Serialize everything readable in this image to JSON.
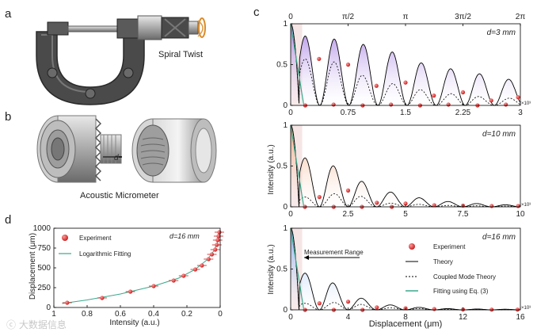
{
  "panels": {
    "a": {
      "letter": "a",
      "caption": "Spiral Twist"
    },
    "b": {
      "letter": "b",
      "caption": "Acoustic Micrometer",
      "gap_label": "d"
    },
    "c": {
      "letter": "c",
      "top_ticks": [
        "0",
        "π/2",
        "π",
        "3π/2",
        "2π"
      ],
      "ylabel": "Intensity (a.u.)",
      "xlabel": "Displacement (μm)",
      "exp_label": "×10³",
      "measurement_range": "Measurement Range",
      "legend": [
        "Experiment",
        "Theory",
        "Coupled Mode Theory",
        "Fitting using Eq. (3)"
      ]
    },
    "d": {
      "letter": "d",
      "title": "d=16 mm",
      "ylabel": "Displacement (μm)",
      "xlabel": "Intensity (a.u.)",
      "legend": [
        "Experiment",
        "Logarithmic Fitting"
      ]
    }
  },
  "chart_data": [
    {
      "type": "line",
      "title": "d=3 mm",
      "xlim": [
        0,
        3
      ],
      "ylim": [
        0,
        1
      ],
      "xticks": [
        0,
        0.75,
        1.5,
        2.25,
        3
      ],
      "xtick_labels": [
        "0",
        "0.75",
        "1.5",
        "2.25",
        "3"
      ],
      "yticks": [
        0,
        0.5,
        1
      ],
      "ytick_labels": [
        "0",
        "0.5",
        "1"
      ],
      "theory_peaks": [
        {
          "x": 0.37,
          "y": 0.85
        },
        {
          "x": 0.75,
          "y": 0.78
        },
        {
          "x": 1.12,
          "y": 0.72
        },
        {
          "x": 1.5,
          "y": 0.6
        },
        {
          "x": 1.87,
          "y": 0.46
        },
        {
          "x": 2.25,
          "y": 0.44
        },
        {
          "x": 2.62,
          "y": 0.35
        },
        {
          "x": 3.0,
          "y": 0.3
        }
      ],
      "cmt_peaks": [
        {
          "x": 0.37,
          "y": 0.57
        },
        {
          "x": 0.75,
          "y": 0.5
        },
        {
          "x": 1.12,
          "y": 0.25
        },
        {
          "x": 1.5,
          "y": 0.28
        },
        {
          "x": 1.87,
          "y": 0.12
        },
        {
          "x": 2.25,
          "y": 0.16
        },
        {
          "x": 2.62,
          "y": 0.07
        },
        {
          "x": 3.0,
          "y": 0.1
        }
      ],
      "experiment": [
        {
          "x": 0.37,
          "y": 0.57
        },
        {
          "x": 0.75,
          "y": 0.5
        },
        {
          "x": 1.12,
          "y": 0.24
        },
        {
          "x": 1.5,
          "y": 0.28
        },
        {
          "x": 1.87,
          "y": 0.12
        },
        {
          "x": 2.25,
          "y": 0.16
        },
        {
          "x": 2.62,
          "y": 0.06
        },
        {
          "x": 2.97,
          "y": 0.1
        },
        {
          "x": 0.19,
          "y": 0.0
        },
        {
          "x": 0.56,
          "y": 0.01
        },
        {
          "x": 0.94,
          "y": 0.0
        },
        {
          "x": 1.31,
          "y": 0.01
        },
        {
          "x": 1.69,
          "y": 0.0
        },
        {
          "x": 2.06,
          "y": 0.01
        },
        {
          "x": 2.44,
          "y": 0.0
        },
        {
          "x": 2.81,
          "y": 0.01
        }
      ]
    },
    {
      "type": "line",
      "title": "d=10 mm",
      "xlim": [
        0,
        10
      ],
      "ylim": [
        0,
        1
      ],
      "xticks": [
        0,
        2.5,
        5,
        7.5,
        10
      ],
      "xtick_labels": [
        "0",
        "2.5",
        "5",
        "7.5",
        "10"
      ],
      "yticks": [
        0,
        0.5,
        1
      ],
      "ytick_labels": [
        "0",
        "0.5",
        "1"
      ],
      "theory_peaks": [
        {
          "x": 1.25,
          "y": 0.6
        },
        {
          "x": 2.5,
          "y": 0.4
        },
        {
          "x": 3.75,
          "y": 0.22
        },
        {
          "x": 5.0,
          "y": 0.14
        },
        {
          "x": 6.25,
          "y": 0.08
        },
        {
          "x": 7.5,
          "y": 0.05
        },
        {
          "x": 8.75,
          "y": 0.03
        },
        {
          "x": 10.0,
          "y": 0.02
        }
      ],
      "cmt_peaks": [
        {
          "x": 1.25,
          "y": 0.12
        },
        {
          "x": 2.5,
          "y": 0.2
        },
        {
          "x": 3.75,
          "y": 0.05
        },
        {
          "x": 5.0,
          "y": 0.04
        },
        {
          "x": 6.25,
          "y": 0.02
        },
        {
          "x": 7.5,
          "y": 0.015
        },
        {
          "x": 8.75,
          "y": 0.01
        },
        {
          "x": 10.0,
          "y": 0.01
        }
      ],
      "experiment": [
        {
          "x": 1.25,
          "y": 0.12
        },
        {
          "x": 2.5,
          "y": 0.2
        },
        {
          "x": 3.75,
          "y": 0.05
        },
        {
          "x": 5.0,
          "y": 0.04
        },
        {
          "x": 6.25,
          "y": 0.02
        },
        {
          "x": 7.5,
          "y": 0.015
        },
        {
          "x": 8.75,
          "y": 0.01
        },
        {
          "x": 9.9,
          "y": 0.01
        },
        {
          "x": 0.62,
          "y": 0.0
        },
        {
          "x": 1.87,
          "y": 0.0
        },
        {
          "x": 3.1,
          "y": 0.0
        },
        {
          "x": 4.4,
          "y": 0.0
        }
      ]
    },
    {
      "type": "line",
      "title": "d=16 mm",
      "xlim": [
        0,
        16
      ],
      "ylim": [
        0,
        1
      ],
      "xticks": [
        0,
        4,
        8,
        12,
        16
      ],
      "xtick_labels": [
        "0",
        "4",
        "8",
        "12",
        "16"
      ],
      "yticks": [
        0,
        0.5,
        1
      ],
      "ytick_labels": [
        "0",
        "0.5",
        "1"
      ],
      "theory_peaks": [
        {
          "x": 2.0,
          "y": 0.45
        },
        {
          "x": 4.0,
          "y": 0.2
        },
        {
          "x": 6.0,
          "y": 0.08
        },
        {
          "x": 8.0,
          "y": 0.04
        },
        {
          "x": 10.0,
          "y": 0.02
        },
        {
          "x": 12.0,
          "y": 0.01
        },
        {
          "x": 14.0,
          "y": 0.01
        },
        {
          "x": 16.0,
          "y": 0.005
        }
      ],
      "cmt_peaks": [
        {
          "x": 2.0,
          "y": 0.08
        },
        {
          "x": 4.0,
          "y": 0.1
        },
        {
          "x": 6.0,
          "y": 0.03
        },
        {
          "x": 8.0,
          "y": 0.02
        },
        {
          "x": 10.0,
          "y": 0.01
        },
        {
          "x": 12.0,
          "y": 0.005
        },
        {
          "x": 14.0,
          "y": 0.003
        },
        {
          "x": 16.0,
          "y": 0.003
        }
      ],
      "experiment": [
        {
          "x": 2.0,
          "y": 0.08
        },
        {
          "x": 4.0,
          "y": 0.1
        },
        {
          "x": 6.0,
          "y": 0.03
        },
        {
          "x": 8.0,
          "y": 0.02
        },
        {
          "x": 10.0,
          "y": 0.01
        },
        {
          "x": 12.0,
          "y": 0.005
        },
        {
          "x": 14.0,
          "y": 0.003
        },
        {
          "x": 15.8,
          "y": 0.003
        },
        {
          "x": 1.0,
          "y": 0.0
        },
        {
          "x": 3.0,
          "y": 0.0
        },
        {
          "x": 5.0,
          "y": 0.0
        }
      ]
    },
    {
      "type": "scatter",
      "title": "d=16 mm",
      "xlim": [
        1,
        0
      ],
      "ylim": [
        0,
        1000
      ],
      "xticks": [
        1,
        0.8,
        0.6,
        0.4,
        0.2,
        0
      ],
      "xtick_labels": [
        "1",
        "0.8",
        "0.6",
        "0.4",
        "0.2",
        "0"
      ],
      "yticks": [
        0,
        250,
        500,
        750,
        1000
      ],
      "ytick_labels": [
        "0",
        "250",
        "500",
        "750",
        "1000"
      ],
      "experiment": [
        {
          "x": 0.92,
          "y": 60
        },
        {
          "x": 0.71,
          "y": 120
        },
        {
          "x": 0.54,
          "y": 200
        },
        {
          "x": 0.4,
          "y": 270
        },
        {
          "x": 0.28,
          "y": 340
        },
        {
          "x": 0.22,
          "y": 400
        },
        {
          "x": 0.15,
          "y": 480
        },
        {
          "x": 0.11,
          "y": 530
        },
        {
          "x": 0.07,
          "y": 610
        },
        {
          "x": 0.05,
          "y": 670
        },
        {
          "x": 0.03,
          "y": 730
        },
        {
          "x": 0.02,
          "y": 790
        },
        {
          "x": 0.015,
          "y": 850
        },
        {
          "x": 0.01,
          "y": 900
        },
        {
          "x": 0.005,
          "y": 950
        }
      ],
      "fit": [
        {
          "x": 0.95,
          "y": 50
        },
        {
          "x": 0.8,
          "y": 95
        },
        {
          "x": 0.6,
          "y": 170
        },
        {
          "x": 0.4,
          "y": 270
        },
        {
          "x": 0.25,
          "y": 370
        },
        {
          "x": 0.15,
          "y": 480
        },
        {
          "x": 0.08,
          "y": 600
        },
        {
          "x": 0.04,
          "y": 710
        },
        {
          "x": 0.02,
          "y": 800
        },
        {
          "x": 0.01,
          "y": 880
        },
        {
          "x": 0.003,
          "y": 960
        }
      ]
    }
  ]
}
